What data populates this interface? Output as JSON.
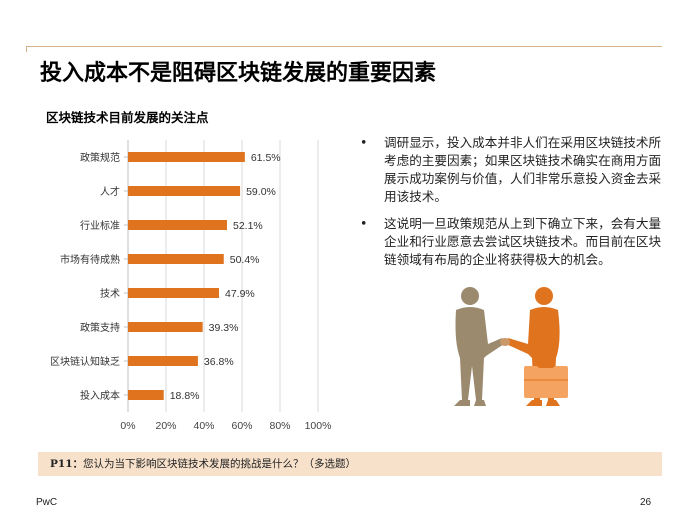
{
  "page": {
    "title": "投入成本不是阻碍区块链发展的重要因素",
    "footer_brand": "PwC",
    "page_number": "26"
  },
  "chart_data": {
    "type": "bar",
    "orientation": "horizontal",
    "title": "区块链技术目前发展的关注点",
    "categories": [
      "政策规范",
      "人才",
      "行业标准",
      "市场有待成熟",
      "技术",
      "政策支持",
      "区块链认知缺乏",
      "投入成本"
    ],
    "values": [
      61.5,
      59.0,
      52.1,
      50.4,
      47.9,
      39.3,
      36.8,
      18.8
    ],
    "value_labels": [
      "61.5%",
      "59.0%",
      "52.1%",
      "50.4%",
      "47.9%",
      "39.3%",
      "36.8%",
      "18.8%"
    ],
    "xlim": [
      0,
      100
    ],
    "x_ticks": [
      0,
      20,
      40,
      60,
      80,
      100
    ],
    "x_tick_labels": [
      "0%",
      "20%",
      "40%",
      "60%",
      "80%",
      "100%"
    ],
    "grid": "vertical",
    "color": "#e0731e"
  },
  "bullets": [
    "调研显示，投入成本并非人们在采用区块链技术所考虑的主要因素；如果区块链技术确实在商用方面展示成功案例与价值，人们非常乐意投入资金去采用该技术。",
    "这说明一旦政策规范从上到下确立下来，会有大量企业和行业愿意去尝试区块链技术。而目前在区块链领域有布局的企业将获得极大的机会。"
  ],
  "bullet_symbol": "•",
  "question": {
    "number": "P11：",
    "text": "您认为当下影响区块链技术发展的挑战是什么？（多选题）"
  }
}
